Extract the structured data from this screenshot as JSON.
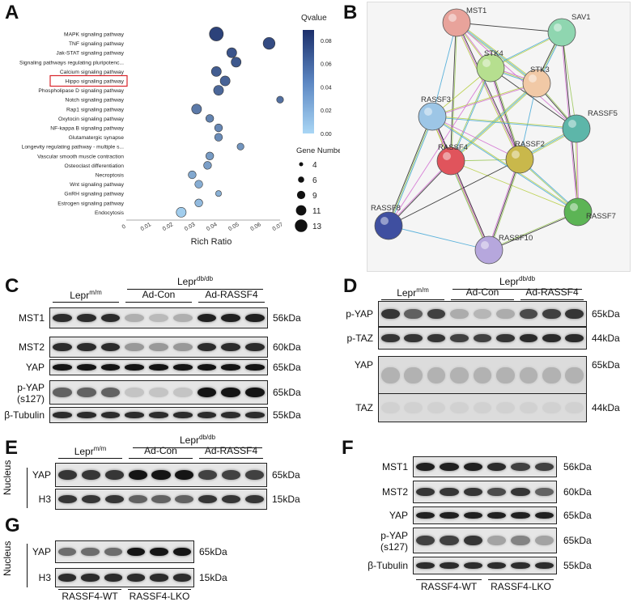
{
  "panels": {
    "A": "A",
    "B": "B",
    "C": "C",
    "D": "D",
    "E": "E",
    "F": "F",
    "G": "G"
  },
  "chart_data": {
    "type": "scatter",
    "title": "",
    "xlabel": "Rich Ratio",
    "ylabel": "",
    "xlim": [
      0,
      0.07
    ],
    "xticks": [
      "0",
      "0.01",
      "0.02",
      "0.03",
      "0.04",
      "0.05",
      "0.06",
      "0.07"
    ],
    "categories": [
      "MAPK signaling pathway",
      "TNF signaling pathway",
      "Jak-STAT signaling pathway",
      "Signaling pathways regulating pluripotenc...",
      "Calcium signaling pathway",
      "Hippo signaling pathway",
      "Phospholipase D signaling pathway",
      "Notch signaling pathway",
      "Rap1 signaling pathway",
      "Oxytocin signaling pathway",
      "NF-kappa B signaling pathway",
      "Glutamatergic synapse",
      "Longevity regulating pathway - multiple s...",
      "Vascular smooth muscle contraction",
      "Osteoclast differentiation",
      "Necroptosis",
      "Wnt signaling pathway",
      "GnRH signaling pathway",
      "Estrogen signaling pathway",
      "Endocytosis"
    ],
    "points": [
      {
        "x": 0.041,
        "gene": 13,
        "q": 0.08
      },
      {
        "x": 0.065,
        "gene": 11,
        "q": 0.075
      },
      {
        "x": 0.048,
        "gene": 9,
        "q": 0.07
      },
      {
        "x": 0.05,
        "gene": 9,
        "q": 0.068
      },
      {
        "x": 0.041,
        "gene": 9,
        "q": 0.065
      },
      {
        "x": 0.045,
        "gene": 9,
        "q": 0.062
      },
      {
        "x": 0.042,
        "gene": 9,
        "q": 0.06
      },
      {
        "x": 0.07,
        "gene": 6,
        "q": 0.055
      },
      {
        "x": 0.032,
        "gene": 9,
        "q": 0.05
      },
      {
        "x": 0.038,
        "gene": 7,
        "q": 0.045
      },
      {
        "x": 0.042,
        "gene": 7,
        "q": 0.042
      },
      {
        "x": 0.042,
        "gene": 7,
        "q": 0.04
      },
      {
        "x": 0.052,
        "gene": 6,
        "q": 0.035
      },
      {
        "x": 0.038,
        "gene": 7,
        "q": 0.032
      },
      {
        "x": 0.037,
        "gene": 7,
        "q": 0.03
      },
      {
        "x": 0.03,
        "gene": 7,
        "q": 0.025
      },
      {
        "x": 0.033,
        "gene": 7,
        "q": 0.022
      },
      {
        "x": 0.042,
        "gene": 5,
        "q": 0.02
      },
      {
        "x": 0.033,
        "gene": 7,
        "q": 0.015
      },
      {
        "x": 0.025,
        "gene": 9,
        "q": 0.005
      }
    ],
    "highlight": "Hippo signaling pathway",
    "colorbar": {
      "title": "Qvalue",
      "ticks": [
        "0.08",
        "0.06",
        "0.04",
        "0.02",
        "0.00"
      ],
      "min_color": "#a9d6f5",
      "max_color": "#1c2f6b"
    },
    "size_legend": {
      "title": "Gene Number",
      "values": [
        "4",
        "6",
        "9",
        "11",
        "13"
      ]
    }
  },
  "network": {
    "nodes": [
      {
        "id": "MST1",
        "color": "#e8a39b"
      },
      {
        "id": "SAV1",
        "color": "#8fd6b0"
      },
      {
        "id": "STK4",
        "color": "#b6df8f"
      },
      {
        "id": "STK3",
        "color": "#f1c9a6"
      },
      {
        "id": "RASSF3",
        "color": "#9dc6e6"
      },
      {
        "id": "RASSF5",
        "color": "#5db6a9"
      },
      {
        "id": "RASSF4",
        "color": "#e0545c"
      },
      {
        "id": "RASSF2",
        "color": "#c9b84b"
      },
      {
        "id": "RASSF7",
        "color": "#5cb455"
      },
      {
        "id": "RASSF8",
        "color": "#3f4fa0"
      },
      {
        "id": "RASSF10",
        "color": "#b6a7dd"
      }
    ]
  },
  "blots": {
    "C": {
      "group_top": "Lepr",
      "group_top_sup": "db/db",
      "groups": [
        {
          "label": "Lepr",
          "sup": "m/m"
        },
        {
          "label": "Ad-Con",
          "sup": ""
        },
        {
          "label": "Ad-RASSF4",
          "sup": ""
        }
      ],
      "rows": [
        {
          "label": "MST1",
          "kda": "56kDa"
        },
        {
          "label": "MST2",
          "kda": "60kDa"
        },
        {
          "label": "YAP",
          "kda": "65kDa"
        },
        {
          "label": "p-YAP",
          "label2": "(s127)",
          "kda": "65kDa"
        },
        {
          "label": "β-Tubulin",
          "kda": "55kDa"
        }
      ]
    },
    "D": {
      "group_top": "Lepr",
      "group_top_sup": "db/db",
      "groups": [
        {
          "label": "Lepr",
          "sup": "m/m"
        },
        {
          "label": "Ad-Con",
          "sup": ""
        },
        {
          "label": "Ad-RASSF4",
          "sup": ""
        }
      ],
      "rows": [
        {
          "label": "p-YAP",
          "kda": "65kDa"
        },
        {
          "label": "p-TAZ",
          "kda": "44kDa"
        },
        {
          "label": "YAP",
          "kda": "65kDa"
        },
        {
          "label": "TAZ",
          "kda": "44kDa"
        }
      ]
    },
    "E": {
      "group_top": "Lepr",
      "group_top_sup": "db/db",
      "groups": [
        {
          "label": "Lepr",
          "sup": "m/m"
        },
        {
          "label": "Ad-Con",
          "sup": ""
        },
        {
          "label": "Ad-RASSF4",
          "sup": ""
        }
      ],
      "side": "Nucleus",
      "rows": [
        {
          "label": "YAP",
          "kda": "65kDa"
        },
        {
          "label": "H3",
          "kda": "15kDa"
        }
      ]
    },
    "F": {
      "rows": [
        {
          "label": "MST1",
          "kda": "56kDa"
        },
        {
          "label": "MST2",
          "kda": "60kDa"
        },
        {
          "label": "YAP",
          "kda": "65kDa"
        },
        {
          "label": "p-YAP",
          "label2": "(s127)",
          "kda": "65kDa"
        },
        {
          "label": "β-Tubulin",
          "kda": "55kDa"
        }
      ],
      "groups": [
        {
          "label": "RASSF4-WT"
        },
        {
          "label": "RASSF4-LKO"
        }
      ]
    },
    "G": {
      "side": "Nucleus",
      "rows": [
        {
          "label": "YAP",
          "kda": "65kDa"
        },
        {
          "label": "H3",
          "kda": "15kDa"
        }
      ],
      "groups": [
        {
          "label": "RASSF4-WT"
        },
        {
          "label": "RASSF4-LKO"
        }
      ]
    }
  }
}
